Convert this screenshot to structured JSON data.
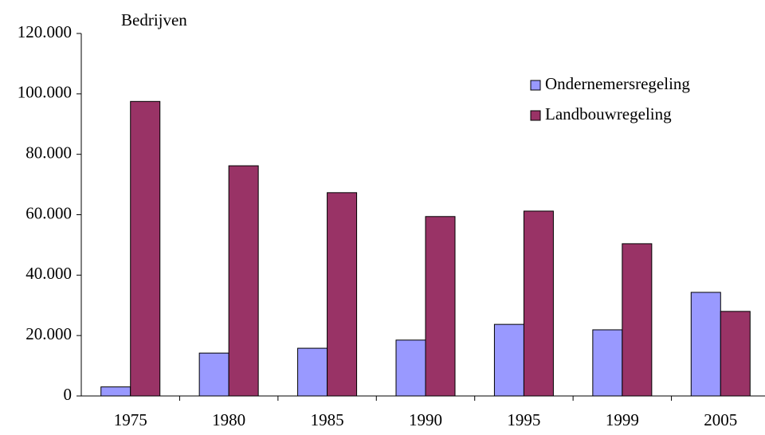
{
  "chart_data": {
    "type": "bar",
    "y_label": "Bedrijven",
    "categories": [
      "1975",
      "1980",
      "1985",
      "1990",
      "1995",
      "1999",
      "2005"
    ],
    "series": [
      {
        "name": "Ondernemersregeling",
        "color": "#9999ff",
        "values": [
          3000,
          14200,
          15800,
          18500,
          23700,
          21900,
          34300
        ]
      },
      {
        "name": "Landbouwregeling",
        "color": "#993366",
        "values": [
          97500,
          76200,
          67300,
          59400,
          61200,
          50400,
          28000
        ]
      }
    ],
    "ylim": [
      0,
      120000
    ],
    "yticks": [
      0,
      {
        "value": 20000,
        "label": "20.000"
      },
      {
        "value": 40000,
        "label": "40.000"
      },
      {
        "value": 60000,
        "label": "60.000"
      },
      {
        "value": 80000,
        "label": "80.000"
      },
      {
        "value": 100000,
        "label": "100.000"
      },
      {
        "value": 120000,
        "label": "120.000"
      }
    ],
    "legend": "top-right"
  }
}
